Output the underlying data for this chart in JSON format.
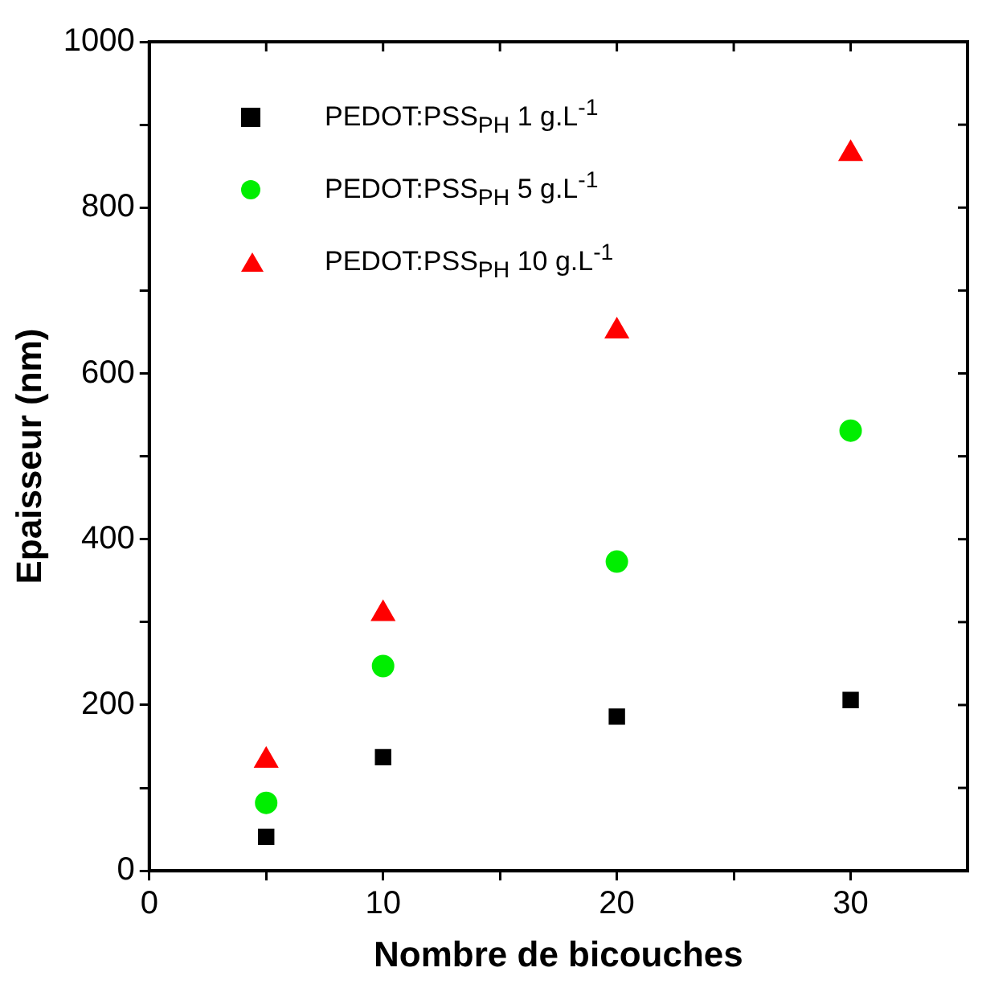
{
  "chart_data": {
    "type": "scatter",
    "xlabel": "Nombre de bicouches",
    "ylabel": "Epaisseur (nm)",
    "xlim": [
      0,
      35
    ],
    "xticks": [
      0,
      {
        "value": 5,
        "label": null
      },
      10,
      {
        "value": 15,
        "label": null
      },
      20,
      {
        "value": 25,
        "label": null
      },
      30
    ],
    "ylim": [
      0,
      1000
    ],
    "yticks": [
      0,
      {
        "value": 100,
        "label": null
      },
      200,
      {
        "value": 300,
        "label": null
      },
      400,
      {
        "value": 500,
        "label": null
      },
      600,
      {
        "value": 700,
        "label": null
      },
      800,
      {
        "value": 900,
        "label": null
      },
      1000
    ],
    "grid": false,
    "legend": "top left",
    "series": [
      {
        "name": "PEDOT:PSS$_{PH}$ 1 g.L$^{-1}$",
        "color": "#000000",
        "marker": "square",
        "x": [
          5,
          10,
          20,
          30
        ],
        "values": [
          41,
          137,
          186,
          206
        ]
      },
      {
        "name": "PEDOT:PSS$_{PH}$ 5 g.L$^{-1}$",
        "color": "#00ee00",
        "marker": "circle",
        "x": [
          5,
          10,
          20,
          30
        ],
        "values": [
          82,
          247,
          373,
          531
        ]
      },
      {
        "name": "PEDOT:PSS$_{PH}$ 10 g.L$^{-1}$",
        "color": "#ff0000",
        "marker": "triangle",
        "x": [
          5,
          10,
          20,
          30
        ],
        "values": [
          133,
          310,
          651,
          865
        ]
      }
    ]
  }
}
